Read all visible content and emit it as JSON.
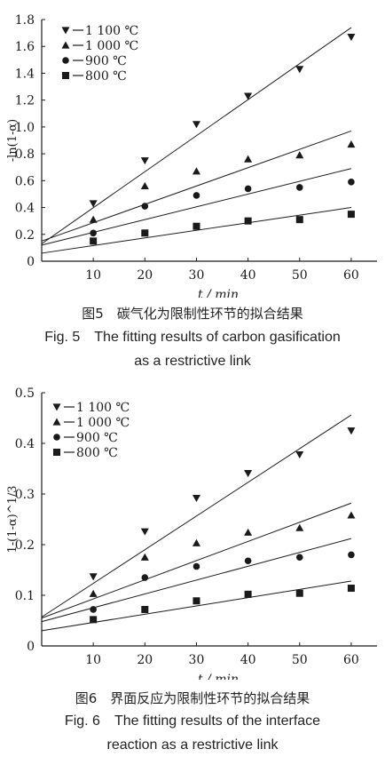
{
  "chart_data": [
    {
      "type": "scatter",
      "xlabel": "t / min",
      "ylabel": "-ln(1-α)",
      "xlim": [
        0,
        65
      ],
      "ylim": [
        0,
        1.8
      ],
      "x_ticks": [
        "10",
        "20",
        "30",
        "40",
        "50",
        "60"
      ],
      "y_ticks": [
        "0",
        "0.2",
        "0.4",
        "0.6",
        "0.8",
        "1.0",
        "1.2",
        "1.4",
        "1.6",
        "1.8"
      ],
      "legend": "top-left",
      "fit_lines": true,
      "series": [
        {
          "name": "1 100 ℃",
          "marker": "triangle-down",
          "x": [
            10,
            20,
            30,
            40,
            50,
            60
          ],
          "y": [
            0.43,
            0.75,
            1.02,
            1.23,
            1.43,
            1.67
          ],
          "fit": [
            0.13,
            1.74
          ]
        },
        {
          "name": "1 000 ℃",
          "marker": "triangle-up",
          "x": [
            10,
            20,
            30,
            40,
            50,
            60
          ],
          "y": [
            0.31,
            0.56,
            0.67,
            0.76,
            0.79,
            0.87
          ],
          "fit": [
            0.15,
            0.97
          ]
        },
        {
          "name": "900 ℃",
          "marker": "circle",
          "x": [
            10,
            20,
            30,
            40,
            50,
            60
          ],
          "y": [
            0.21,
            0.41,
            0.49,
            0.54,
            0.55,
            0.59
          ],
          "fit": [
            0.12,
            0.69
          ]
        },
        {
          "name": "800 ℃",
          "marker": "square",
          "x": [
            10,
            20,
            30,
            40,
            50,
            60
          ],
          "y": [
            0.15,
            0.21,
            0.26,
            0.3,
            0.31,
            0.35
          ],
          "fit": [
            0.06,
            0.4
          ]
        }
      ]
    },
    {
      "type": "scatter",
      "xlabel": "t / min",
      "ylabel": "1-(1-α)^1/3",
      "xlim": [
        0,
        65
      ],
      "ylim": [
        0,
        0.5
      ],
      "x_ticks": [
        "10",
        "20",
        "30",
        "40",
        "50",
        "60"
      ],
      "y_ticks": [
        "0",
        "0.1",
        "0.2",
        "0.3",
        "0.4",
        "0.5"
      ],
      "legend": "top-left",
      "fit_lines": true,
      "series": [
        {
          "name": "1 100 ℃",
          "marker": "triangle-down",
          "x": [
            10,
            20,
            30,
            40,
            50,
            60
          ],
          "y": [
            0.137,
            0.226,
            0.292,
            0.341,
            0.378,
            0.425
          ],
          "fit": [
            0.057,
            0.456
          ]
        },
        {
          "name": "1 000 ℃",
          "marker": "triangle-up",
          "x": [
            10,
            20,
            30,
            40,
            50,
            60
          ],
          "y": [
            0.103,
            0.175,
            0.203,
            0.224,
            0.233,
            0.258
          ],
          "fit": [
            0.055,
            0.282
          ]
        },
        {
          "name": "900 ℃",
          "marker": "circle",
          "x": [
            10,
            20,
            30,
            40,
            50,
            60
          ],
          "y": [
            0.072,
            0.135,
            0.157,
            0.168,
            0.175,
            0.18
          ],
          "fit": [
            0.048,
            0.212
          ]
        },
        {
          "name": "800 ℃",
          "marker": "square",
          "x": [
            10,
            20,
            30,
            40,
            50,
            60
          ],
          "y": [
            0.052,
            0.072,
            0.089,
            0.102,
            0.104,
            0.114
          ],
          "fit": [
            0.03,
            0.128
          ]
        }
      ]
    }
  ],
  "captions": {
    "fig5_zh": "图5　碳气化为限制性环节的拟合结果",
    "fig5_en_line1": "Fig. 5　The fitting results of carbon gasification",
    "fig5_en_line2": "as a restrictive link",
    "fig6_zh": "图6　界面反应为限制性环节的拟合结果",
    "fig6_en_line1": "Fig. 6　The fitting results of the interface",
    "fig6_en_line2": "reaction as a restrictive link"
  },
  "colors": {
    "ink": "#1a1a1a"
  }
}
